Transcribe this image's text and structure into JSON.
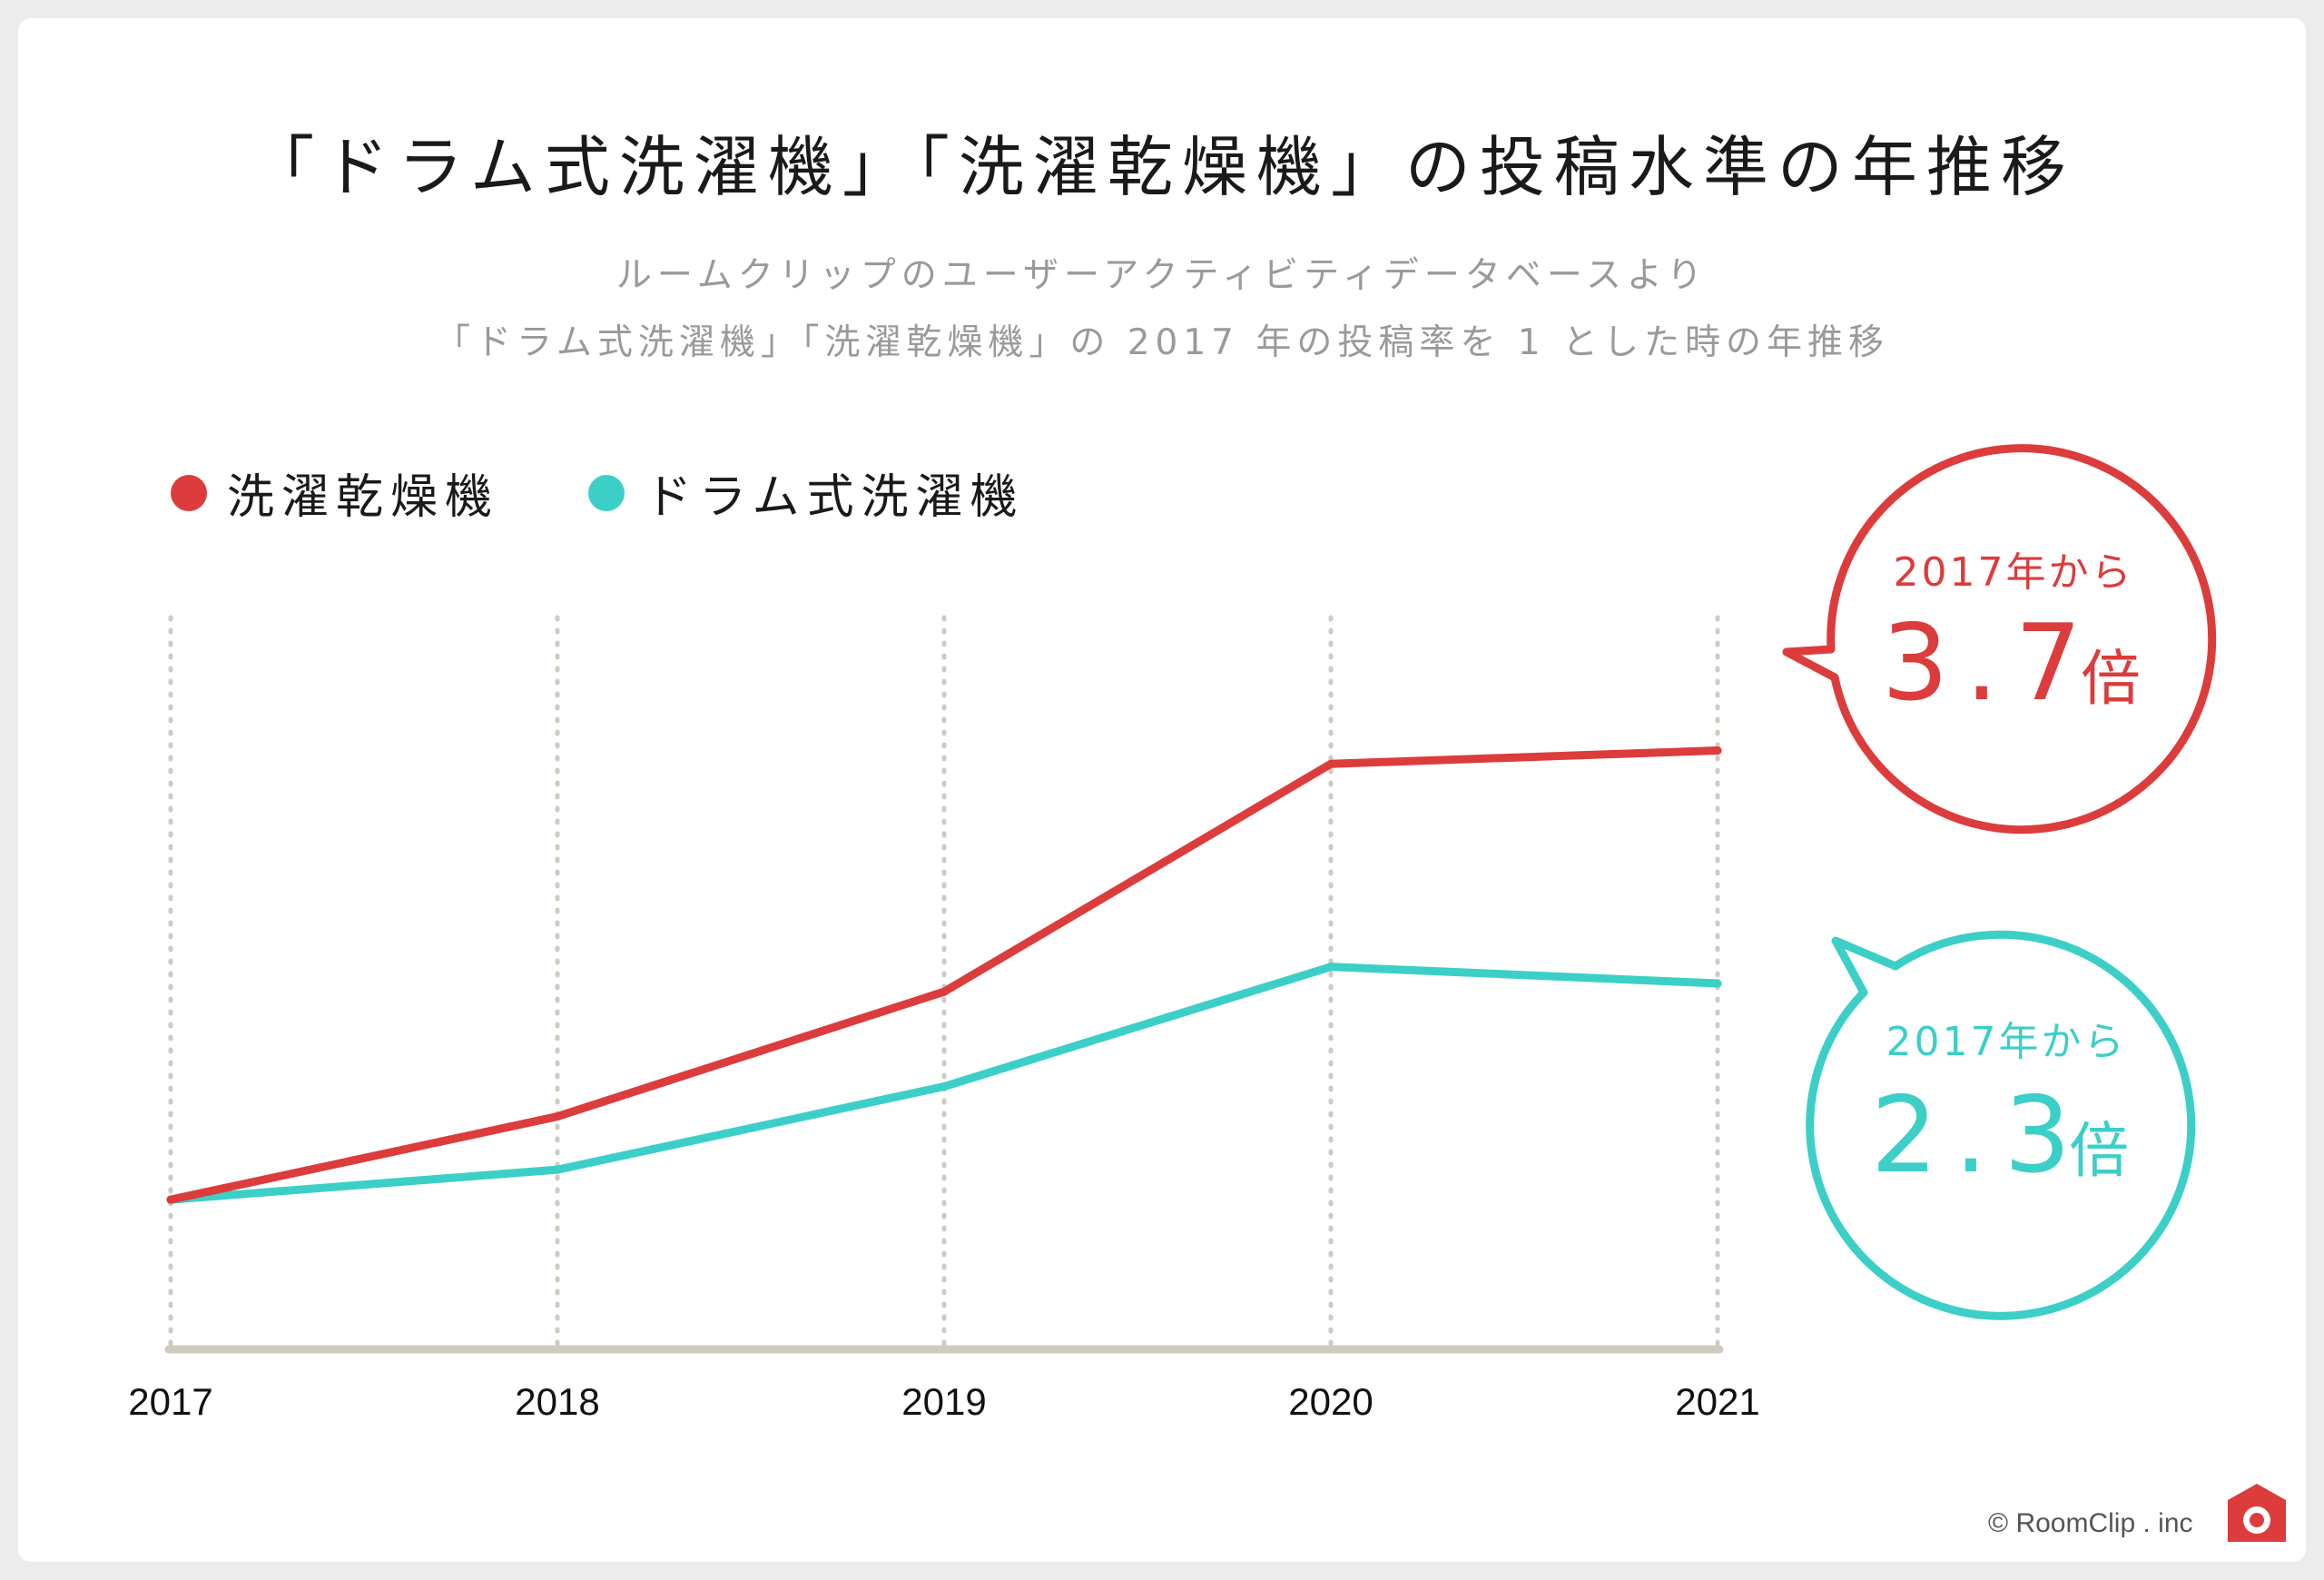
{
  "title": "「ドラム式洗濯機」「洗濯乾燥機」の投稿水準の年推移",
  "subtitle_line1": "ルームクリップのユーザーアクティビティデータベースより",
  "subtitle_line2": "「ドラム式洗濯機」「洗濯乾燥機」の 2017 年の投稿率を 1 とした時の年推移",
  "legend": [
    {
      "label": "洗濯乾燥機",
      "color": "#dc3c3c"
    },
    {
      "label": "ドラム式洗濯機",
      "color": "#3ccfc8"
    }
  ],
  "callouts": [
    {
      "from_text": "2017年から",
      "value": "3.7",
      "unit": "倍",
      "color": "#dc3c3c"
    },
    {
      "from_text": "2017年から",
      "value": "2.3",
      "unit": "倍",
      "color": "#3ccfc8"
    }
  ],
  "copyright": "© RoomClip . inc",
  "colors": {
    "red": "#dc3c3c",
    "teal": "#3ccfc8",
    "axis": "#cfcbc0",
    "grid": "#cfcbc0"
  },
  "chart_data": {
    "type": "line",
    "title": "「ドラム式洗濯機」「洗濯乾燥機」の投稿水準の年推移",
    "categories": [
      "2017",
      "2018",
      "2019",
      "2020",
      "2021"
    ],
    "series": [
      {
        "name": "洗濯乾燥機",
        "values": [
          1.0,
          1.5,
          2.25,
          3.62,
          3.7
        ],
        "color": "#dc3c3c"
      },
      {
        "name": "ドラム式洗濯機",
        "values": [
          1.0,
          1.18,
          1.68,
          2.4,
          2.3
        ],
        "color": "#3ccfc8"
      }
    ],
    "ylim": [
      0.1,
      4.5
    ],
    "xlabel": "",
    "ylabel": "",
    "grid": "vertical dotted",
    "legend": "top-left"
  }
}
